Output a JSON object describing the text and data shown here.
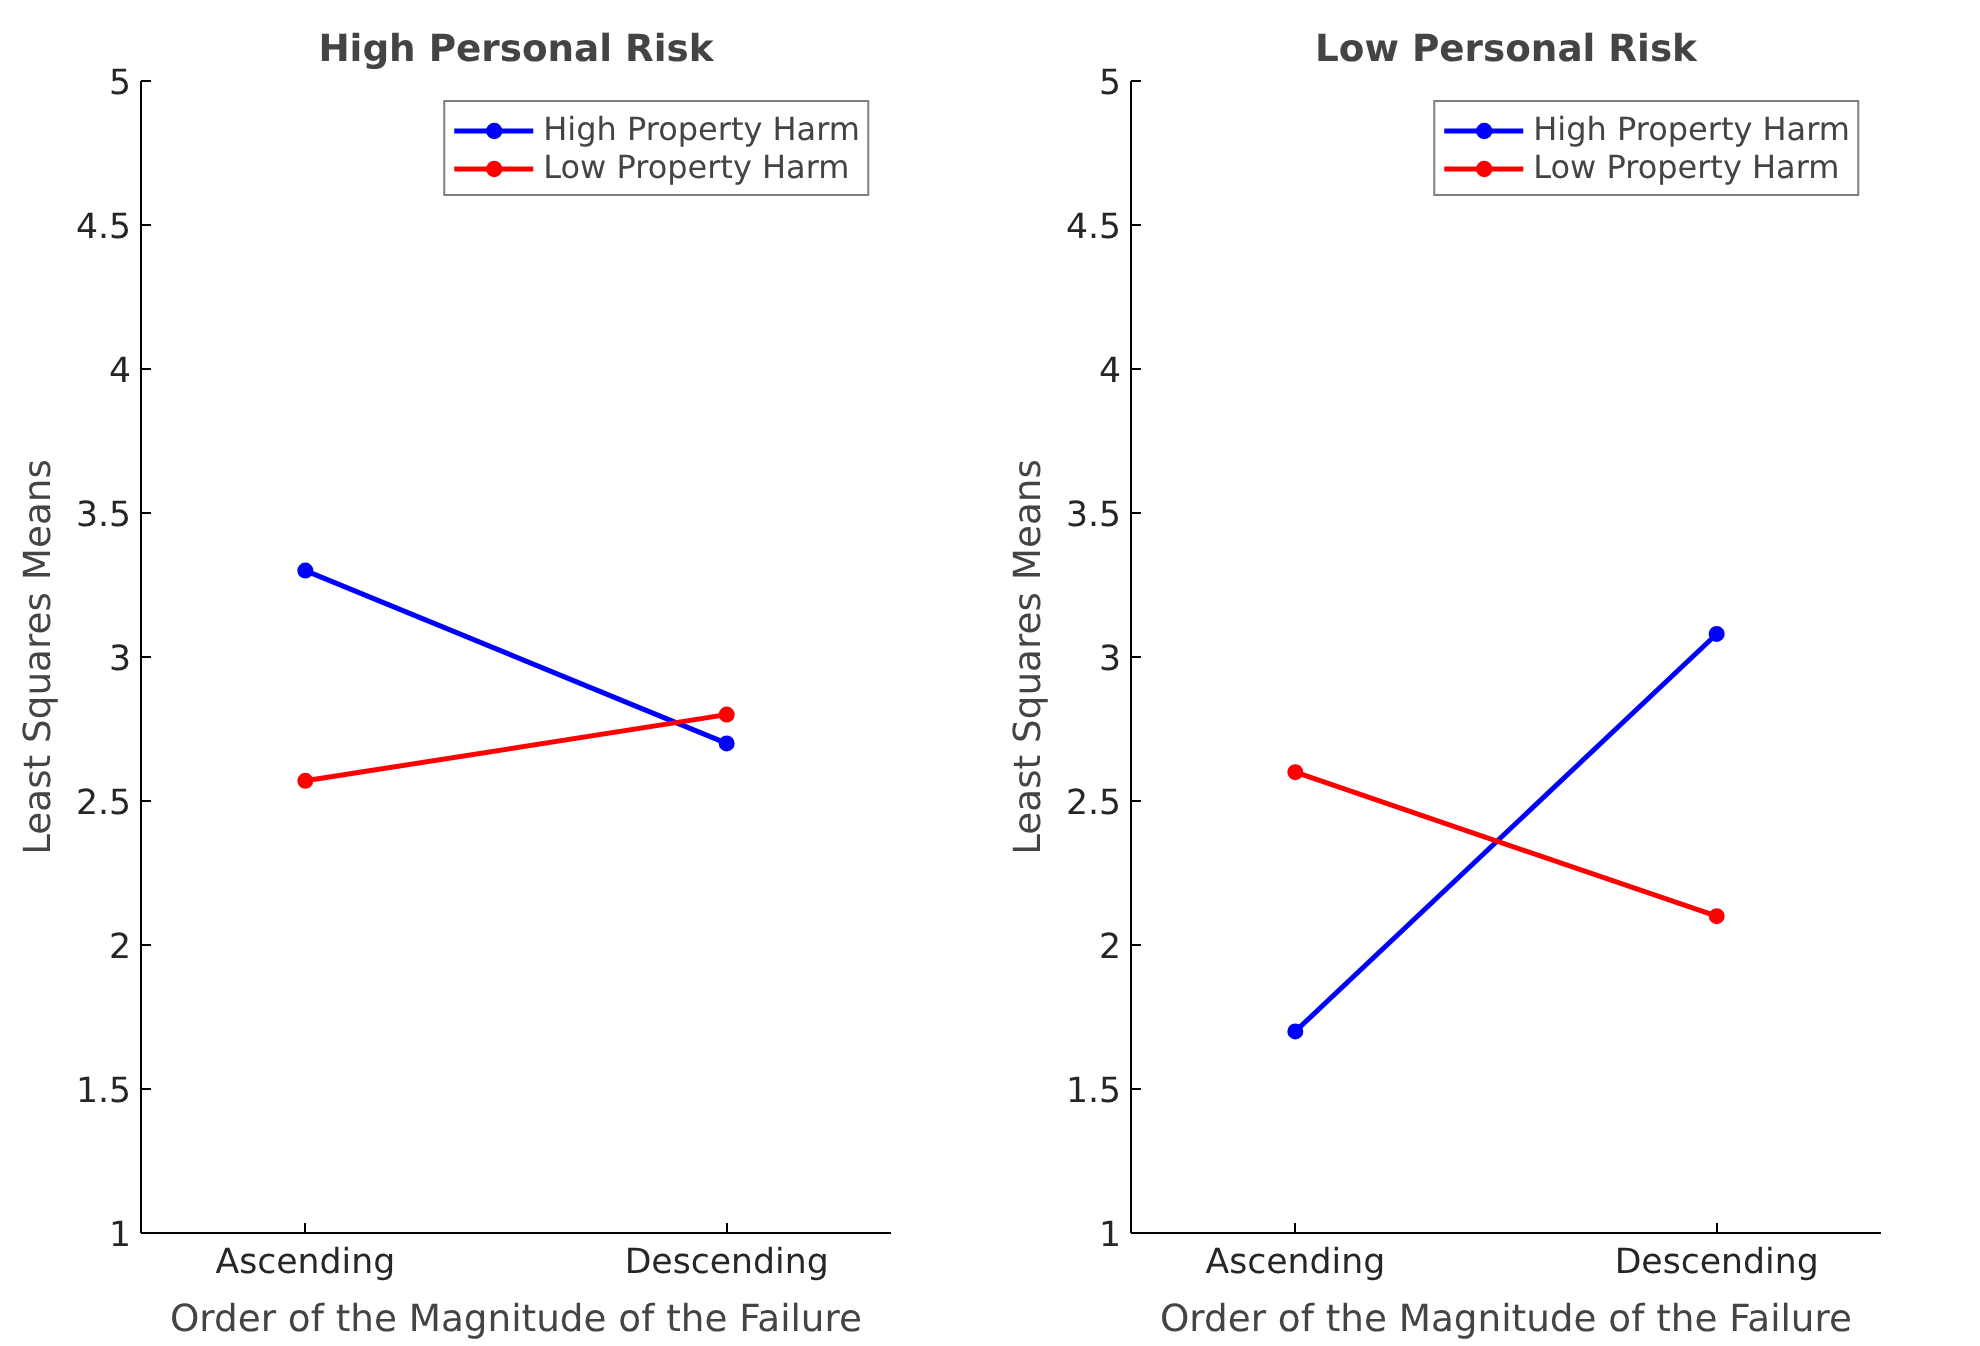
{
  "chart_data": [
    {
      "type": "line",
      "title": "High Personal Risk",
      "xlabel": "Order of the Magnitude of the Failure",
      "ylabel": "Least Squares Means",
      "categories": [
        "Ascending",
        "Descending"
      ],
      "ylim": [
        1,
        5
      ],
      "yticks": [
        1,
        1.5,
        2,
        2.5,
        3,
        3.5,
        4,
        4.5,
        5
      ],
      "grid": false,
      "legend": "top right",
      "marker": "circle",
      "line_style": "solid",
      "series": [
        {
          "name": "High Property Harm",
          "color": "#0000ff",
          "values": [
            3.3,
            2.7
          ]
        },
        {
          "name": "Low Property Harm",
          "color": "#ff0000",
          "values": [
            2.57,
            2.8
          ]
        }
      ]
    },
    {
      "type": "line",
      "title": "Low Personal Risk",
      "xlabel": "Order of the Magnitude of the Failure",
      "ylabel": "Least Squares Means",
      "categories": [
        "Ascending",
        "Descending"
      ],
      "ylim": [
        1,
        5
      ],
      "yticks": [
        1,
        1.5,
        2,
        2.5,
        3,
        3.5,
        4,
        4.5,
        5
      ],
      "grid": false,
      "legend": "top right",
      "marker": "circle",
      "line_style": "solid",
      "series": [
        {
          "name": "High Property Harm",
          "color": "#0000ff",
          "values": [
            1.7,
            3.08
          ]
        },
        {
          "name": "Low Property Harm",
          "color": "#ff0000",
          "values": [
            2.6,
            2.1
          ]
        }
      ]
    }
  ]
}
